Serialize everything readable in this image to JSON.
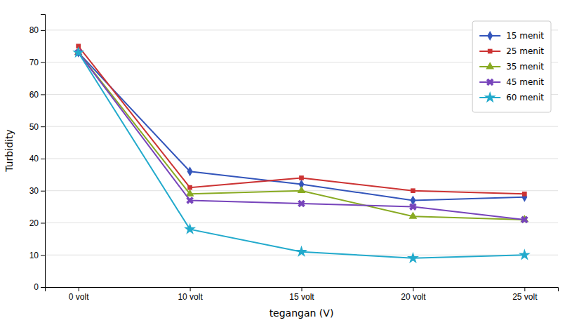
{
  "chart_data": {
    "type": "line",
    "xlabel": "tegangan (V)",
    "ylabel": "Turbidity",
    "categories": [
      "0 volt",
      "10 volt",
      "15 volt",
      "20 volt",
      "25 volt"
    ],
    "series": [
      {
        "name": "15 menit",
        "color": "#3355bb",
        "marker": "diamond",
        "line_style": "solid",
        "values": [
          73,
          36,
          32,
          27,
          28
        ]
      },
      {
        "name": "25 menit",
        "color": "#cc3333",
        "marker": "square",
        "line_style": "solid",
        "values": [
          75,
          31,
          34,
          30,
          29
        ]
      },
      {
        "name": "35 menit",
        "color": "#88aa22",
        "marker": "triangle",
        "line_style": "solid",
        "values": [
          73,
          29,
          30,
          22,
          21
        ]
      },
      {
        "name": "45 menit",
        "color": "#7744bb",
        "marker": "x",
        "line_style": "solid",
        "values": [
          73,
          27,
          26,
          25,
          21
        ]
      },
      {
        "name": "60 menit",
        "color": "#22aacc",
        "marker": "star",
        "line_style": "solid",
        "values": [
          73,
          18,
          11,
          9,
          10
        ]
      }
    ],
    "ylim": [
      0,
      85
    ],
    "yticks": [
      0,
      10,
      20,
      30,
      40,
      50,
      60,
      70,
      80
    ],
    "grid": true,
    "legend": "upper right"
  }
}
